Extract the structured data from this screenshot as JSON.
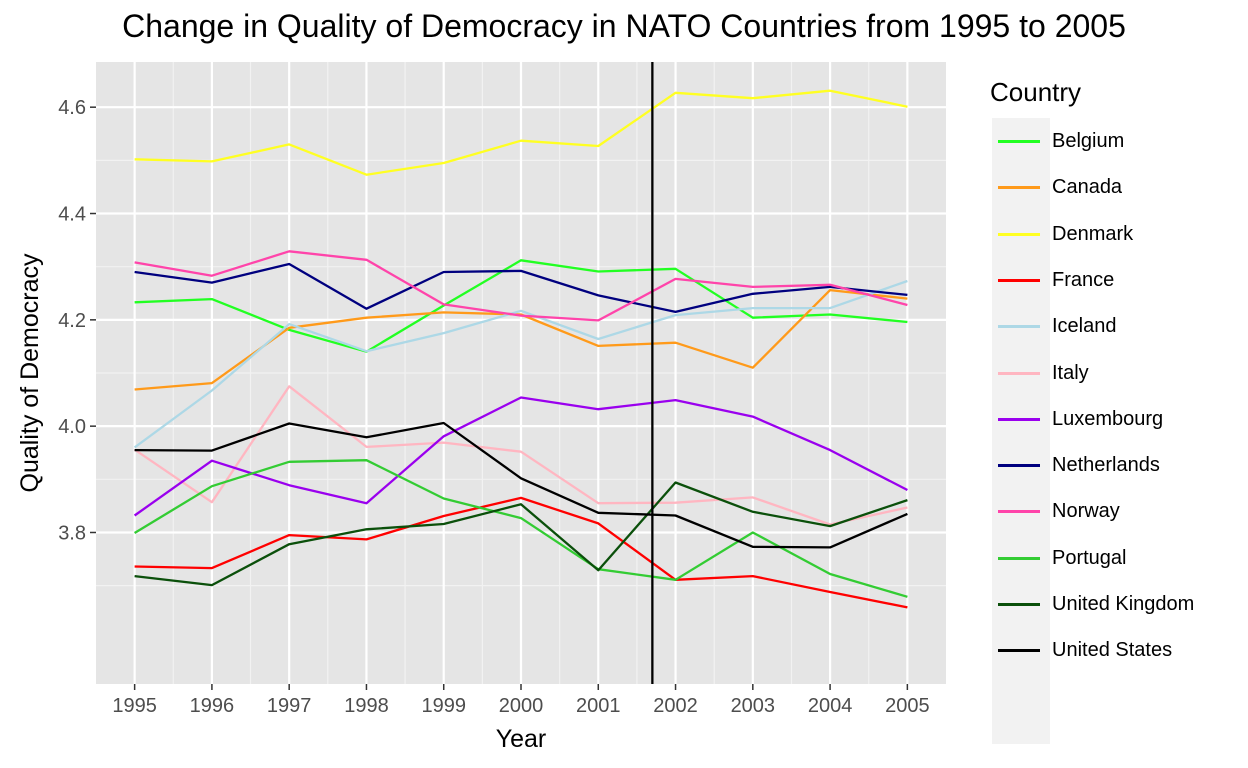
{
  "chart_data": {
    "type": "line",
    "title": "Change in Quality of Democracy in NATO Countries from 1995 to 2005",
    "xlabel": "Year",
    "ylabel": "Quality of Democracy",
    "legend_title": "Country",
    "legend_position": "right",
    "background": "#e5e5e5",
    "grid": true,
    "x": [
      1995,
      1996,
      1997,
      1998,
      1999,
      2000,
      2001,
      2002,
      2003,
      2004,
      2005
    ],
    "xlim": [
      1994.5,
      2005.5
    ],
    "ylim": [
      3.515,
      4.685
    ],
    "y_ticks": [
      3.8,
      4.0,
      4.2,
      4.4,
      4.6
    ],
    "y_tick_labels": [
      "3.8",
      "4.0",
      "4.2",
      "4.4",
      "4.6"
    ],
    "vline": 2001.7,
    "series": [
      {
        "name": "Belgium",
        "color": "#22ff22",
        "values": [
          4.233,
          4.239,
          4.181,
          4.14,
          4.227,
          4.312,
          4.291,
          4.296,
          4.204,
          4.21,
          4.196
        ]
      },
      {
        "name": "Canada",
        "color": "#ff9a1a",
        "values": [
          4.069,
          4.081,
          4.185,
          4.204,
          4.214,
          4.21,
          4.151,
          4.157,
          4.11,
          4.256,
          4.24
        ]
      },
      {
        "name": "Denmark",
        "color": "#ffff22",
        "values": [
          4.502,
          4.498,
          4.53,
          4.473,
          4.495,
          4.537,
          4.527,
          4.627,
          4.617,
          4.631,
          4.601
        ]
      },
      {
        "name": "France",
        "color": "#ff0000",
        "values": [
          3.736,
          3.733,
          3.795,
          3.787,
          3.831,
          3.865,
          3.817,
          3.711,
          3.718,
          3.688,
          3.659
        ]
      },
      {
        "name": "Iceland",
        "color": "#add8e6",
        "values": [
          3.96,
          4.067,
          4.192,
          4.141,
          4.175,
          4.217,
          4.164,
          4.209,
          4.222,
          4.222,
          4.273
        ]
      },
      {
        "name": "Italy",
        "color": "#ffb6c1",
        "values": [
          3.956,
          3.857,
          4.075,
          3.961,
          3.969,
          3.952,
          3.855,
          3.856,
          3.866,
          3.815,
          3.847
        ]
      },
      {
        "name": "Luxembourg",
        "color": "#9a00ee",
        "values": [
          3.832,
          3.935,
          3.889,
          3.855,
          3.981,
          4.054,
          4.032,
          4.049,
          4.018,
          3.955,
          3.88
        ]
      },
      {
        "name": "Netherlands",
        "color": "#00007f",
        "values": [
          4.29,
          4.27,
          4.305,
          4.221,
          4.29,
          4.292,
          4.246,
          4.215,
          4.249,
          4.262,
          4.247
        ]
      },
      {
        "name": "Norway",
        "color": "#ff44aa",
        "values": [
          4.308,
          4.283,
          4.329,
          4.313,
          4.229,
          4.208,
          4.199,
          4.277,
          4.262,
          4.266,
          4.228
        ]
      },
      {
        "name": "Portugal",
        "color": "#33cc33",
        "values": [
          3.799,
          3.887,
          3.933,
          3.936,
          3.864,
          3.827,
          3.731,
          3.711,
          3.8,
          3.722,
          3.679
        ]
      },
      {
        "name": "United Kingdom",
        "color": "#0b500b",
        "values": [
          3.718,
          3.701,
          3.778,
          3.806,
          3.816,
          3.853,
          3.729,
          3.894,
          3.839,
          3.812,
          3.861
        ]
      },
      {
        "name": "United States",
        "color": "#000000",
        "values": [
          3.955,
          3.954,
          4.005,
          3.979,
          4.006,
          3.902,
          3.837,
          3.832,
          3.773,
          3.772,
          3.835
        ]
      }
    ]
  }
}
